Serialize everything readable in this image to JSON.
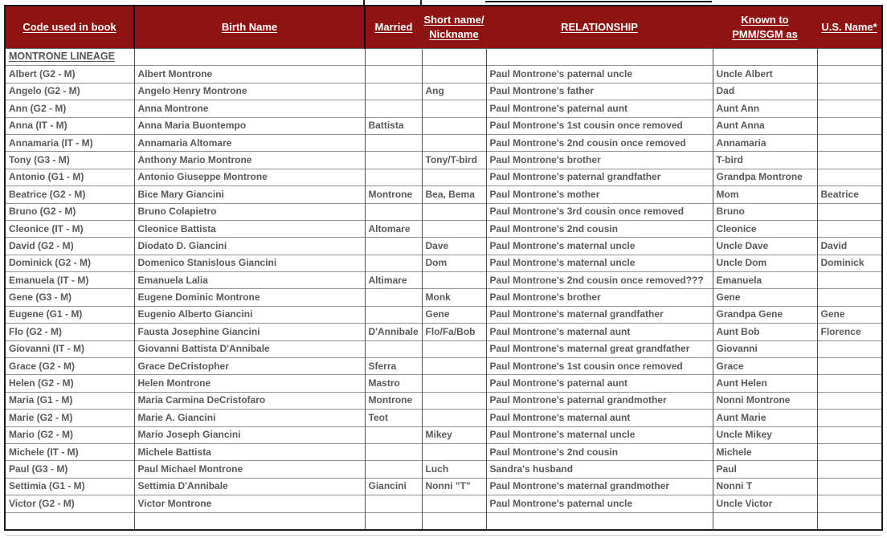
{
  "colors": {
    "header_background": "#8E1313",
    "header_text": "#FFFFFF",
    "body_text": "#595959",
    "grid_line": "#8F8F8F",
    "outer_border": "#1C1C1C"
  },
  "table": {
    "columns": [
      "Code used in book",
      "Birth Name",
      "Married",
      "Short name/\nNickname",
      "RELATIONSHIP",
      "Known to\nPMM/SGM as",
      "U.S. Name*"
    ],
    "section_label": "MONTRONE LINEAGE",
    "rows": [
      [
        "MONTRONE LINEAGE",
        "",
        "",
        "",
        "",
        "",
        ""
      ],
      [
        "Albert (G2 - M)",
        "Albert  Montrone",
        "",
        "",
        "Paul Montrone's paternal uncle",
        "Uncle Albert",
        ""
      ],
      [
        "Angelo (G2 - M)",
        "Angelo  Henry Montrone",
        "",
        "Ang",
        "Paul Montrone's father",
        "Dad",
        ""
      ],
      [
        "Ann (G2 - M)",
        "Anna   Montrone",
        "",
        "",
        "Paul Montrone's paternal aunt",
        "Aunt Ann",
        ""
      ],
      [
        "Anna (IT - M)",
        "Anna Maria Buontempo",
        "Battista",
        "",
        "Paul Montrone's 1st cousin once removed",
        "Aunt Anna",
        ""
      ],
      [
        "Annamaria (IT - M)",
        "Annamaria  Altomare",
        "",
        "",
        "Paul Montrone's 2nd cousin once removed",
        "Annamaria",
        ""
      ],
      [
        "Tony (G3 - M)",
        "Anthony  Mario Montrone",
        "",
        "Tony/T-bird",
        "Paul Montrone's brother",
        "T-bird",
        ""
      ],
      [
        "Antonio (G1 - M)",
        "Antonio Giuseppe Montrone",
        "",
        "",
        "Paul Montrone's paternal grandfather",
        "Grandpa Montrone",
        ""
      ],
      [
        "Beatrice (G2 - M)",
        "Bice Mary Giancini",
        "Montrone",
        "Bea, Bema",
        "Paul Montrone's mother",
        "Mom",
        "Beatrice"
      ],
      [
        "Bruno (G2 - M)",
        "Bruno Colapietro",
        "",
        "",
        "Paul Montrone's 3rd cousin once removed",
        "Bruno",
        ""
      ],
      [
        "Cleonice (IT - M)",
        "Cleonice Battista",
        "Altomare",
        "",
        "Paul Montrone's 2nd cousin",
        "Cleonice",
        ""
      ],
      [
        "David (G2 - M)",
        "Diodato D. Giancini",
        "",
        "Dave",
        "Paul Montrone's maternal uncle",
        "Uncle Dave",
        "David"
      ],
      [
        "Dominick (G2 - M)",
        "Domenico Stanislous Giancini",
        "",
        "Dom",
        "Paul Montrone's maternal uncle",
        "Uncle Dom",
        "Dominick"
      ],
      [
        "Emanuela (IT - M)",
        "Emanuela  Lalia",
        "Altimare",
        "",
        "Paul Montrone's 2nd cousin once removed???",
        "Emanuela",
        ""
      ],
      [
        "Gene (G3 - M)",
        "Eugene Dominic Montrone",
        "",
        "Monk",
        "Paul Montrone's brother",
        "Gene",
        ""
      ],
      [
        "Eugene (G1 - M)",
        "Eugenio  Alberto Giancini",
        "",
        "Gene",
        "Paul Montrone's maternal grandfather",
        "Grandpa Gene",
        "Gene"
      ],
      [
        "Flo (G2 - M)",
        "Fausta Josephine Giancini",
        "D'Annibale",
        "Flo/Fa/Bob",
        "Paul Montrone's maternal aunt",
        "Aunt Bob",
        "Florence"
      ],
      [
        "Giovanni (IT - M)",
        "Giovanni Battista D'Annibale",
        "",
        "",
        "Paul Montrone's maternal great grandfather",
        "Giovanni",
        ""
      ],
      [
        "Grace (G2 - M)",
        "Grace DeCristopher",
        "Sferra",
        "",
        "Paul Montrone's 1st cousin once removed",
        "Grace",
        ""
      ],
      [
        "Helen (G2 - M)",
        "Helen Montrone",
        "Mastro",
        "",
        "Paul Montrone's paternal aunt",
        "Aunt Helen",
        ""
      ],
      [
        "Maria (G1 - M)",
        "Maria Carmina DeCristofaro",
        "Montrone",
        "",
        "Paul Montrone's paternal grandmother",
        "Nonni Montrone",
        ""
      ],
      [
        "Marie (G2 - M)",
        "Marie A. Giancini",
        "Teot",
        "",
        "Paul Montrone's maternal aunt",
        "Aunt Marie",
        ""
      ],
      [
        "Mario (G2 - M)",
        "Mario  Joseph Giancini",
        "",
        "Mikey",
        "Paul Montrone's maternal uncle",
        "Uncle Mikey",
        ""
      ],
      [
        "Michele (IT - M)",
        "Michele Battista",
        "",
        "",
        "Paul Montrone's 2nd cousin",
        "Michele",
        ""
      ],
      [
        "Paul (G3 - M)",
        "Paul  Michael Montrone",
        "",
        "Luch",
        "Sandra's husband",
        "Paul",
        ""
      ],
      [
        "Settimia (G1 - M)",
        "Settimia D'Annibale",
        "Giancini",
        "Nonni \"T\"",
        "Paul Montrone's maternal grandmother",
        "Nonni T",
        ""
      ],
      [
        "Victor (G2 - M)",
        "Victor Montrone",
        "",
        "",
        "Paul Montrone's paternal uncle",
        "Uncle Victor",
        ""
      ],
      [
        "",
        "",
        "",
        "",
        "",
        "",
        ""
      ]
    ]
  }
}
